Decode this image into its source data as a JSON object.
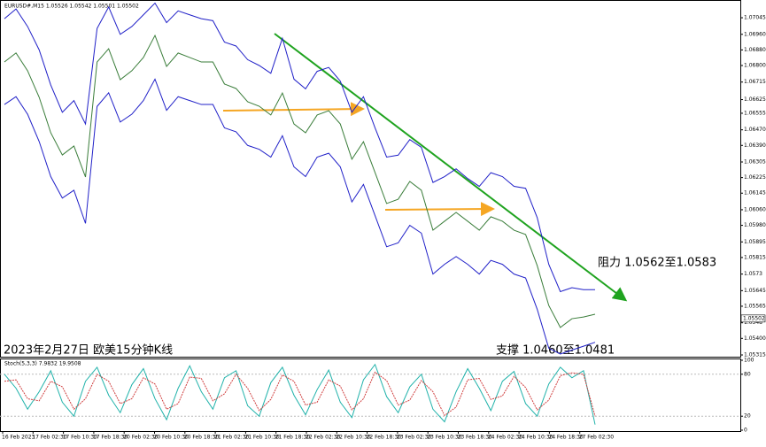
{
  "header": "EURUSD#,M15  1.05526 1.05542 1.05501 1.05502",
  "chart_data": [
    {
      "type": "line",
      "caption": "2023年2月27日 欧美15分钟K线",
      "resistance_label": "阻力 1.0562至1.0583",
      "support_label": "支撑 1.0460至1.0481",
      "last_price": 1.05502,
      "ylim": [
        1.05306,
        1.07136
      ],
      "yticks": [
        1.07045,
        {
          "value": 1.0696,
          "label": "1.06960"
        },
        {
          "value": 1.0688,
          "label": "1.06880"
        },
        {
          "value": 1.068,
          "label": "1.06800"
        },
        1.06715,
        1.06625,
        1.06555,
        {
          "value": 1.0647,
          "label": "1.06470"
        },
        {
          "value": 1.0639,
          "label": "1.06390"
        },
        1.06305,
        1.06225,
        1.06145,
        {
          "value": 1.0606,
          "label": "1.06060"
        },
        {
          "value": 1.0598,
          "label": "1.05980"
        },
        1.05895,
        1.05815,
        1.0573,
        1.05645,
        1.05565,
        1.0548,
        {
          "value": 1.054,
          "label": "1.05400"
        },
        1.05315
      ],
      "xtick_labels": [
        "16 Feb 2023",
        "17 Feb 02:30",
        "17 Feb 10:30",
        "17 Feb 18:30",
        "20 Feb 02:30",
        "20 Feb 10:30",
        "20 Feb 18:30",
        "21 Feb 02:30",
        "21 Feb 10:30",
        "21 Feb 18:30",
        "22 Feb 02:30",
        "22 Feb 10:30",
        "22 Feb 18:30",
        "23 Feb 02:30",
        "23 Feb 10:30",
        "23 Feb 18:30",
        "24 Feb 02:30",
        "24 Feb 10:30",
        "24 Feb 18:30",
        "27 Feb 02:30"
      ],
      "series": [
        {
          "color": "#3a7d3a",
          "values": [
            1.06818,
            1.06864,
            1.06773,
            1.06637,
            1.06455,
            1.06341,
            1.06387,
            1.06228,
            1.06818,
            1.06886,
            1.06727,
            1.06773,
            1.06841,
            1.06954,
            1.06795,
            1.06864,
            1.06841,
            1.06818,
            1.06818,
            1.06705,
            1.06682,
            1.06614,
            1.06591,
            1.06546,
            1.06659,
            1.065,
            1.06455,
            1.06546,
            1.06568,
            1.065,
            1.06319,
            1.06409,
            1.06251,
            1.06092,
            1.06114,
            1.06205,
            1.0616,
            1.05955,
            1.06001,
            1.06046,
            1.06001,
            1.05955,
            1.06024,
            1.06001,
            1.05955,
            1.05933,
            1.05774,
            1.05569,
            1.05456,
            1.05501,
            1.0551,
            1.05524
          ]
        },
        {
          "color": "#2020c8",
          "values": [
            1.0704,
            1.0709,
            1.07,
            1.0688,
            1.067,
            1.0656,
            1.0662,
            1.065,
            1.0699,
            1.071,
            1.0696,
            1.07,
            1.0706,
            1.0712,
            1.0702,
            1.0708,
            1.0706,
            1.0704,
            1.0703,
            1.0692,
            1.069,
            1.0683,
            1.068,
            1.0676,
            1.0694,
            1.0673,
            1.0668,
            1.0677,
            1.0679,
            1.0672,
            1.0656,
            1.0664,
            1.0648,
            1.0633,
            1.0634,
            1.0642,
            1.0638,
            1.062,
            1.0623,
            1.0627,
            1.0622,
            1.0618,
            1.0625,
            1.0623,
            1.0618,
            1.0617,
            1.0602,
            1.0578,
            1.0564,
            1.0566,
            1.0565,
            1.0565
          ]
        },
        {
          "color": "#2020c8",
          "values": [
            1.066,
            1.0664,
            1.0655,
            1.0641,
            1.0623,
            1.0612,
            1.0616,
            1.0599,
            1.0659,
            1.0666,
            1.0651,
            1.0655,
            1.0662,
            1.0673,
            1.0657,
            1.0664,
            1.0662,
            1.066,
            1.066,
            1.0648,
            1.0646,
            1.0639,
            1.0637,
            1.0633,
            1.0644,
            1.0628,
            1.0623,
            1.0633,
            1.0635,
            1.0628,
            1.061,
            1.0619,
            1.0603,
            1.0587,
            1.0589,
            1.0598,
            1.0594,
            1.0573,
            1.0578,
            1.0582,
            1.0578,
            1.0573,
            1.058,
            1.0578,
            1.0573,
            1.0571,
            1.0555,
            1.0535,
            1.0532,
            1.0534,
            1.0536,
            1.0538
          ]
        }
      ]
    },
    {
      "type": "line",
      "title": "Stoch(5,3,3) 7.9832 19.9508",
      "ylim": [
        0,
        100
      ],
      "yticks": [
        100,
        80,
        20,
        0
      ],
      "series": [
        {
          "color": "#20b2aa",
          "values": [
            80,
            60,
            30,
            55,
            85,
            40,
            20,
            70,
            90,
            50,
            25,
            65,
            88,
            45,
            15,
            60,
            92,
            55,
            30,
            75,
            85,
            35,
            20,
            68,
            90,
            50,
            22,
            58,
            86,
            40,
            18,
            72,
            94,
            48,
            25,
            62,
            80,
            30,
            12,
            55,
            88,
            60,
            28,
            70,
            84,
            38,
            20,
            66,
            90,
            75,
            85,
            8
          ]
        },
        {
          "color": "#d04040",
          "values": [
            70,
            72,
            45,
            42,
            70,
            62,
            30,
            45,
            80,
            70,
            38,
            45,
            75,
            66,
            30,
            38,
            76,
            74,
            42,
            52,
            80,
            60,
            28,
            44,
            79,
            70,
            36,
            40,
            72,
            63,
            29,
            45,
            83,
            71,
            36,
            43,
            71,
            55,
            21,
            33,
            72,
            74,
            44,
            49,
            77,
            61,
            29,
            43,
            78,
            82,
            80,
            20
          ]
        }
      ]
    }
  ]
}
